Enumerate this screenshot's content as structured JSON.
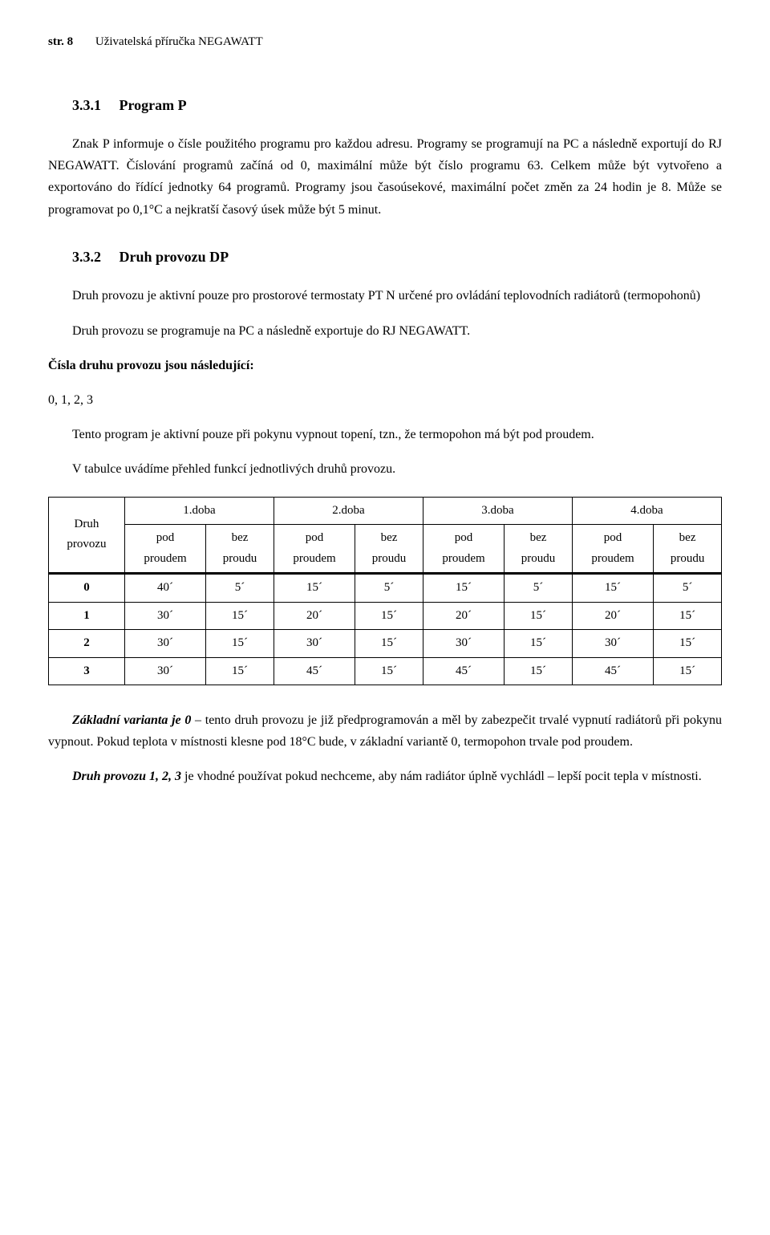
{
  "header": {
    "page_label": "str. 8",
    "doc_title": "Uživatelská příručka NEGAWATT"
  },
  "section_331": {
    "number": "3.3.1",
    "title": "Program P",
    "para": "Znak P informuje o čísle použitého programu pro každou adresu. Programy se programují na PC a následně exportují do RJ NEGAWATT. Číslování programů začíná od 0, maximální může být číslo programu 63. Celkem může být vytvořeno a exportováno do řídící jednotky 64 programů. Programy jsou časoúsekové, maximální počet změn za 24 hodin je 8. Může se programovat po 0,1°C a nejkratší časový úsek může být 5 minut."
  },
  "section_332": {
    "number": "3.3.2",
    "title": "Druh provozu DP",
    "para1": "Druh provozu je aktivní pouze pro prostorové termostaty PT N určené pro ovládání teplovodních radiátorů (termopohonů)",
    "para1b": "Druh provozu se programuje na PC a následně exportuje do RJ NEGAWATT.",
    "lead2": "Čísla druhu provozu jsou následující:",
    "nums": "0, 1, 2, 3",
    "para2": "Tento program je aktivní pouze při pokynu vypnout topení, tzn., že termopohon má být pod proudem.",
    "para3": "V tabulce uvádíme přehled funkcí jednotlivých druhů provozu."
  },
  "table": {
    "corner_l1": "Druh",
    "corner_l2": "provozu",
    "periods": [
      "1.doba",
      "2.doba",
      "3.doba",
      "4.doba"
    ],
    "sub_pod_l1": "pod",
    "sub_pod_l2": "proudem",
    "sub_bez_l1": "bez",
    "sub_bez_l2": "proudu",
    "rows": [
      {
        "id": "0",
        "cells": [
          "40´",
          "5´",
          "15´",
          "5´",
          "15´",
          "5´",
          "15´",
          "5´"
        ]
      },
      {
        "id": "1",
        "cells": [
          "30´",
          "15´",
          "20´",
          "15´",
          "20´",
          "15´",
          "20´",
          "15´"
        ]
      },
      {
        "id": "2",
        "cells": [
          "30´",
          "15´",
          "30´",
          "15´",
          "30´",
          "15´",
          "30´",
          "15´"
        ]
      },
      {
        "id": "3",
        "cells": [
          "30´",
          "15´",
          "45´",
          "15´",
          "45´",
          "15´",
          "45´",
          "15´"
        ]
      }
    ]
  },
  "footer": {
    "lead1": "Základní varianta je 0",
    "rest1": " – tento druh provozu je již předprogramován a měl by zabezpečit trvalé vypnutí radiátorů při pokynu vypnout. Pokud teplota v místnosti klesne pod 18°C bude, v základní variantě 0, termopohon trvale pod proudem.",
    "lead2": "Druh provozu 1, 2, 3",
    "rest2": " je vhodné používat pokud nechceme, aby nám radiátor úplně vychládl – lepší pocit tepla v místnosti."
  }
}
